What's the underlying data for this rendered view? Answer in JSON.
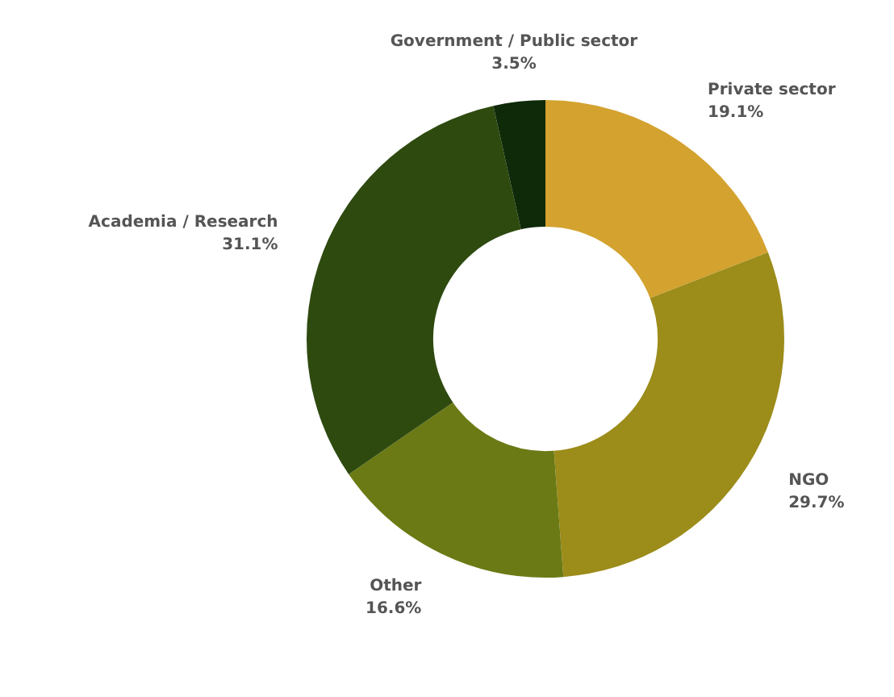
{
  "chart_data": {
    "type": "donut",
    "categories": [
      "Private sector",
      "NGO",
      "Other",
      "Academia / Research",
      "Government / Public sector"
    ],
    "values": [
      19.1,
      29.7,
      16.6,
      31.1,
      3.5
    ],
    "colors": [
      "#d3a22f",
      "#9c8c1a",
      "#6b7a14",
      "#2e4a0f",
      "#0e2a08"
    ],
    "value_labels": [
      "19.1%",
      "29.7%",
      "16.6%",
      "31.1%",
      "3.5%"
    ]
  }
}
